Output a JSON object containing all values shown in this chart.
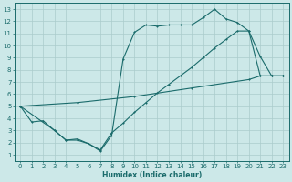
{
  "xlabel": "Humidex (Indice chaleur)",
  "bg_color": "#cce8e8",
  "grid_color": "#aacccc",
  "line_color": "#1a6b6b",
  "xlim": [
    -0.5,
    23.5
  ],
  "ylim": [
    0.5,
    13.5
  ],
  "xticks": [
    0,
    1,
    2,
    3,
    4,
    5,
    6,
    7,
    8,
    9,
    10,
    11,
    12,
    13,
    14,
    15,
    16,
    17,
    18,
    19,
    20,
    21,
    22,
    23
  ],
  "yticks": [
    1,
    2,
    3,
    4,
    5,
    6,
    7,
    8,
    9,
    10,
    11,
    12,
    13
  ],
  "line1_x": [
    0,
    1,
    2,
    3,
    4,
    5,
    6,
    7,
    8,
    9,
    10,
    11,
    12,
    13,
    14,
    15,
    16,
    17,
    18,
    19,
    20,
    21,
    22,
    23
  ],
  "line1_y": [
    5.0,
    3.7,
    3.8,
    3.0,
    2.2,
    2.2,
    1.9,
    1.3,
    2.6,
    8.9,
    11.1,
    11.7,
    11.6,
    11.7,
    11.7,
    11.7,
    12.3,
    13.0,
    12.2,
    11.9,
    11.2,
    9.1,
    7.5,
    7.5
  ],
  "line2_x": [
    0,
    3,
    4,
    5,
    6,
    7,
    8,
    9,
    10,
    11,
    12,
    13,
    14,
    15,
    16,
    17,
    18,
    19,
    20,
    21,
    22,
    23
  ],
  "line2_y": [
    5.0,
    3.0,
    2.2,
    2.3,
    1.9,
    1.4,
    2.8,
    3.6,
    4.5,
    5.3,
    6.1,
    6.8,
    7.5,
    8.2,
    9.0,
    9.8,
    10.5,
    11.2,
    11.2,
    7.5,
    7.5,
    7.5
  ],
  "line3_x": [
    0,
    5,
    10,
    15,
    20,
    21,
    22,
    23
  ],
  "line3_y": [
    5.0,
    5.3,
    5.8,
    6.5,
    7.2,
    7.5,
    7.5,
    7.5
  ]
}
